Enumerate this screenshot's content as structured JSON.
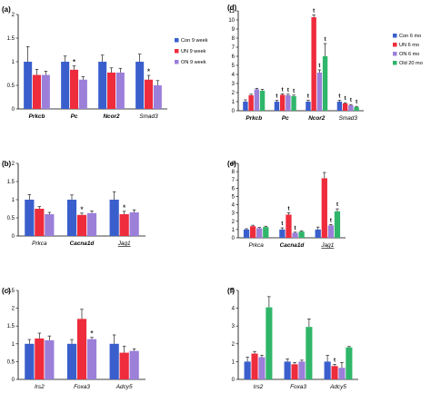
{
  "colors": {
    "blue": "#3a5fcd",
    "red": "#ee2c3c",
    "purple": "#9b7fd9",
    "green": "#2fb66a"
  },
  "chart_data": [
    {
      "panel": "(a)",
      "type": "bar",
      "categories": [
        "Prkcb",
        "Pc",
        "Ncor2",
        "Smad3"
      ],
      "category_bold": [
        true,
        true,
        true,
        false
      ],
      "category_underline": [
        false,
        false,
        false,
        false
      ],
      "ylim": [
        0,
        2
      ],
      "yticks": [
        0,
        0.5,
        1,
        1.5,
        2
      ],
      "series": [
        {
          "name": "Con 9 week",
          "color": "blue",
          "values": [
            1.0,
            1.0,
            1.0,
            1.0
          ],
          "errors": [
            0.32,
            0.12,
            0.14,
            0.16
          ]
        },
        {
          "name": "UN 9 week",
          "color": "red",
          "values": [
            0.72,
            0.83,
            0.77,
            0.62
          ],
          "errors": [
            0.12,
            0.08,
            0.1,
            0.09
          ]
        },
        {
          "name": "ON 9 week",
          "color": "purple",
          "values": [
            0.72,
            0.62,
            0.77,
            0.5
          ],
          "errors": [
            0.08,
            0.06,
            0.09,
            0.1
          ]
        }
      ],
      "marks": [
        "",
        "",
        "",
        "",
        "*",
        "",
        "",
        "",
        "",
        "",
        "*",
        ""
      ],
      "legend": "right"
    },
    {
      "panel": "(b)",
      "type": "bar",
      "categories": [
        "Prkca",
        "Cacna1d",
        "Jag1"
      ],
      "category_bold": [
        false,
        true,
        false
      ],
      "category_underline": [
        false,
        false,
        true
      ],
      "ylim": [
        0,
        2
      ],
      "yticks": [
        0,
        0.5,
        1,
        1.5,
        2
      ],
      "series": [
        {
          "name": "Con",
          "color": "blue",
          "values": [
            1.0,
            1.0,
            1.0
          ],
          "errors": [
            0.14,
            0.13,
            0.22
          ]
        },
        {
          "name": "UN",
          "color": "red",
          "values": [
            0.75,
            0.58,
            0.6
          ],
          "errors": [
            0.06,
            0.05,
            0.08
          ]
        },
        {
          "name": "ON",
          "color": "purple",
          "values": [
            0.6,
            0.63,
            0.65
          ],
          "errors": [
            0.05,
            0.06,
            0.07
          ]
        }
      ],
      "marks": [
        "",
        "",
        "",
        "",
        "*",
        "",
        "",
        "*",
        "",
        "",
        "*",
        "*"
      ]
    },
    {
      "panel": "(c)",
      "type": "bar",
      "categories": [
        "Irs2",
        "Foxa3",
        "Adcy5"
      ],
      "category_bold": [
        false,
        false,
        false
      ],
      "category_underline": [
        false,
        false,
        false
      ],
      "ylim": [
        0,
        2.5
      ],
      "yticks": [
        0,
        0.5,
        1,
        1.5,
        2,
        2.5
      ],
      "series": [
        {
          "name": "Con",
          "color": "blue",
          "values": [
            1.0,
            1.0,
            1.0
          ],
          "errors": [
            0.12,
            0.12,
            0.25
          ]
        },
        {
          "name": "UN",
          "color": "red",
          "values": [
            1.15,
            1.7,
            0.75
          ],
          "errors": [
            0.15,
            0.27,
            0.18
          ]
        },
        {
          "name": "ON",
          "color": "purple",
          "values": [
            1.1,
            1.13,
            0.8
          ],
          "errors": [
            0.12,
            0.05,
            0.06
          ]
        }
      ],
      "marks": [
        "",
        "",
        "",
        "",
        "",
        "*",
        "",
        "",
        "",
        "",
        "",
        ""
      ]
    },
    {
      "panel": "(d)",
      "type": "bar",
      "categories": [
        "Prkcb",
        "Pc",
        "Ncor2",
        "Smad3"
      ],
      "category_bold": [
        true,
        true,
        true,
        false
      ],
      "category_underline": [
        false,
        false,
        false,
        false
      ],
      "ylim": [
        0,
        11
      ],
      "yticks": [
        0,
        1,
        2,
        3,
        4,
        5,
        6,
        7,
        8,
        9,
        10,
        11
      ],
      "series": [
        {
          "name": "Con 6 mo",
          "color": "blue",
          "values": [
            1.0,
            1.0,
            1.0,
            1.0
          ],
          "errors": [
            0.2,
            0.15,
            0.15,
            0.15
          ]
        },
        {
          "name": "UN 6 mo",
          "color": "red",
          "values": [
            1.7,
            1.75,
            10.3,
            0.8
          ],
          "errors": [
            0.12,
            0.1,
            0.25,
            0.08
          ]
        },
        {
          "name": "ON 6 mo",
          "color": "purple",
          "values": [
            2.35,
            1.7,
            4.2,
            0.6
          ],
          "errors": [
            0.12,
            0.12,
            0.3,
            0.08
          ]
        },
        {
          "name": "Old 20 mo",
          "color": "green",
          "values": [
            2.2,
            1.6,
            6.0,
            0.4
          ],
          "errors": [
            0.15,
            0.12,
            1.4,
            0.08
          ]
        }
      ],
      "marks": [
        "",
        "",
        "",
        "",
        "t",
        "t",
        "t",
        "t",
        "t",
        "t",
        "t",
        "t",
        "t",
        "t",
        "t",
        "t"
      ],
      "legend": "right"
    },
    {
      "panel": "(e)",
      "type": "bar",
      "categories": [
        "Prkca",
        "Cacna1d",
        "Jag1"
      ],
      "category_bold": [
        false,
        true,
        false
      ],
      "category_underline": [
        false,
        false,
        true
      ],
      "ylim": [
        0,
        9
      ],
      "yticks": [
        0,
        1,
        2,
        3,
        4,
        5,
        6,
        7,
        8,
        9
      ],
      "series": [
        {
          "name": "Con",
          "color": "blue",
          "values": [
            1.0,
            1.0,
            1.0
          ],
          "errors": [
            0.1,
            0.2,
            0.3
          ]
        },
        {
          "name": "UN",
          "color": "red",
          "values": [
            1.4,
            2.8,
            7.2
          ],
          "errors": [
            0.12,
            0.22,
            0.7
          ]
        },
        {
          "name": "ON",
          "color": "purple",
          "values": [
            1.15,
            0.6,
            1.5
          ],
          "errors": [
            0.1,
            0.08,
            0.1
          ]
        },
        {
          "name": "Old",
          "color": "green",
          "values": [
            1.3,
            0.75,
            3.2
          ],
          "errors": [
            0.1,
            0.1,
            0.3
          ]
        }
      ],
      "marks": [
        "",
        "",
        "",
        "",
        "t",
        "t",
        "t",
        "",
        "",
        "",
        "t",
        "t"
      ]
    },
    {
      "panel": "(f)",
      "type": "bar",
      "categories": [
        "Irs2",
        "Foxa3",
        "Adcy5"
      ],
      "category_bold": [
        false,
        false,
        false
      ],
      "category_underline": [
        false,
        false,
        false
      ],
      "ylim": [
        0,
        5
      ],
      "yticks": [
        0,
        1,
        2,
        3,
        4,
        5
      ],
      "series": [
        {
          "name": "Con",
          "color": "blue",
          "values": [
            1.0,
            1.0,
            1.0
          ],
          "errors": [
            0.25,
            0.15,
            0.35
          ]
        },
        {
          "name": "UN",
          "color": "red",
          "values": [
            1.45,
            0.85,
            0.75
          ],
          "errors": [
            0.12,
            0.1,
            0.1
          ]
        },
        {
          "name": "ON",
          "color": "purple",
          "values": [
            1.25,
            1.0,
            0.65
          ],
          "errors": [
            0.1,
            0.08,
            0.3
          ]
        },
        {
          "name": "Old",
          "color": "green",
          "values": [
            4.05,
            2.95,
            1.8
          ],
          "errors": [
            0.6,
            0.45,
            0.05
          ]
        }
      ],
      "marks": [
        "",
        "",
        "",
        "",
        "",
        "",
        "",
        "",
        "",
        "t",
        "",
        "",
        "t",
        "t",
        "t",
        "t"
      ]
    }
  ]
}
